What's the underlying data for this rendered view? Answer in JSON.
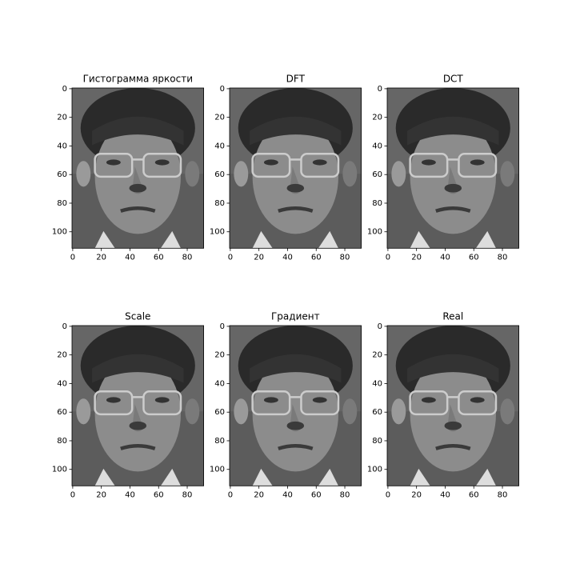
{
  "chart_data": [
    {
      "type": "image",
      "title": "Гистограмма яркости",
      "xlim": [
        -0.5,
        91.5
      ],
      "ylim": [
        111.5,
        -0.5
      ],
      "xticks": [
        0,
        20,
        40,
        60,
        80
      ],
      "yticks": [
        0,
        20,
        40,
        60,
        80,
        100
      ]
    },
    {
      "type": "image",
      "title": "DFT",
      "xlim": [
        -0.5,
        91.5
      ],
      "ylim": [
        111.5,
        -0.5
      ],
      "xticks": [
        0,
        20,
        40,
        60,
        80
      ],
      "yticks": [
        0,
        20,
        40,
        60,
        80,
        100
      ]
    },
    {
      "type": "image",
      "title": "DCT",
      "xlim": [
        -0.5,
        91.5
      ],
      "ylim": [
        111.5,
        -0.5
      ],
      "xticks": [
        0,
        20,
        40,
        60,
        80
      ],
      "yticks": [
        0,
        20,
        40,
        60,
        80,
        100
      ]
    },
    {
      "type": "image",
      "title": "Scale",
      "xlim": [
        -0.5,
        91.5
      ],
      "ylim": [
        111.5,
        -0.5
      ],
      "xticks": [
        0,
        20,
        40,
        60,
        80
      ],
      "yticks": [
        0,
        20,
        40,
        60,
        80,
        100
      ]
    },
    {
      "type": "image",
      "title": "Градиент",
      "xlim": [
        -0.5,
        91.5
      ],
      "ylim": [
        111.5,
        -0.5
      ],
      "xticks": [
        0,
        20,
        40,
        60,
        80
      ],
      "yticks": [
        0,
        20,
        40,
        60,
        80,
        100
      ]
    },
    {
      "type": "image",
      "title": "Real",
      "xlim": [
        -0.5,
        91.5
      ],
      "ylim": [
        111.5,
        -0.5
      ],
      "xticks": [
        0,
        20,
        40,
        60,
        80
      ],
      "yticks": [
        0,
        20,
        40,
        60,
        80,
        100
      ]
    }
  ]
}
